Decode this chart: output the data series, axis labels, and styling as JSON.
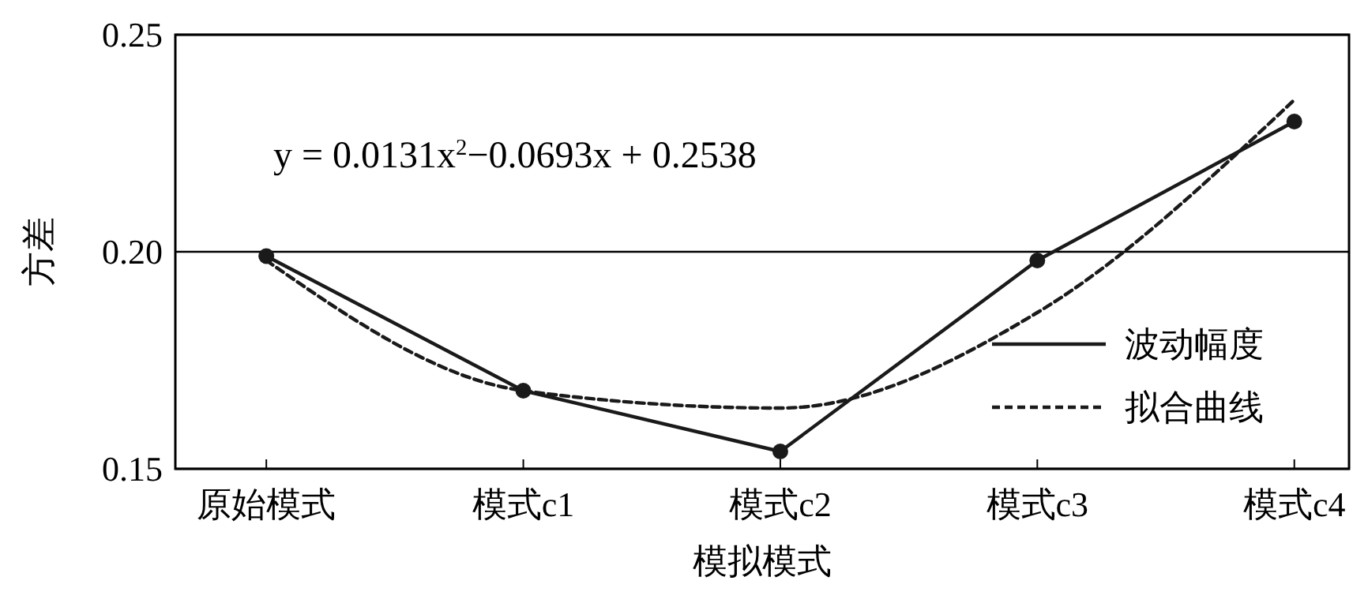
{
  "chart_data": {
    "type": "line",
    "xlabel": "模拟模式",
    "ylabel": "方差",
    "categories": [
      "原始模式",
      "模式c1",
      "模式c2",
      "模式c3",
      "模式c4"
    ],
    "ylim": [
      0.15,
      0.25
    ],
    "yticks": [
      0.15,
      {
        "value": 0.2,
        "label": "0.20"
      },
      0.25
    ],
    "grid": "y",
    "legend": "bottom right",
    "annotations": [
      "y = 0.0131x$^{2}$−0.0693x + 0.2538"
    ],
    "series": [
      {
        "name": "波动幅度",
        "color": "#1a1a1a",
        "marker": "circle",
        "line_style": "solid",
        "values": [
          0.199,
          0.168,
          0.154,
          0.198,
          0.23
        ]
      },
      {
        "name": "拟合曲线",
        "color": "#1a1a1a",
        "marker": "none",
        "line_style": "dashed",
        "values": [
          0.198,
          0.168,
          0.164,
          0.186,
          0.235
        ]
      }
    ]
  }
}
